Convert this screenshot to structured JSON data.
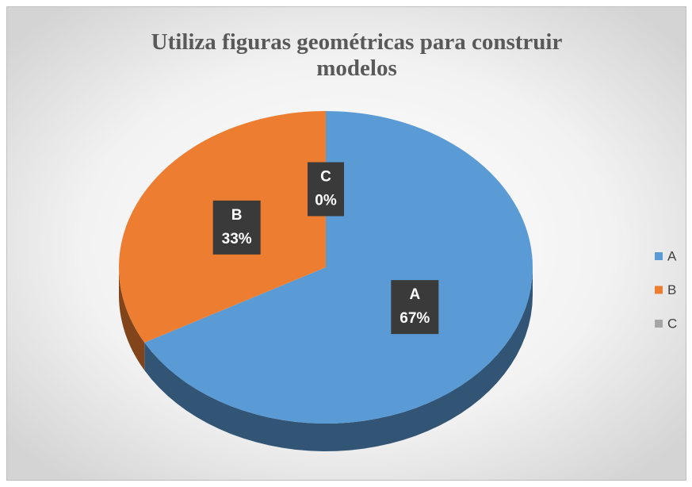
{
  "chart_data": {
    "type": "pie",
    "title": "Utiliza figuras geométricas para construir modelos",
    "categories": [
      "A",
      "B",
      "C"
    ],
    "values": [
      67,
      33,
      0
    ],
    "value_labels": [
      "67%",
      "33%",
      "0%"
    ],
    "colors": [
      "#5b9bd5",
      "#ed7d31",
      "#a5a5a5"
    ],
    "legend": "right"
  }
}
